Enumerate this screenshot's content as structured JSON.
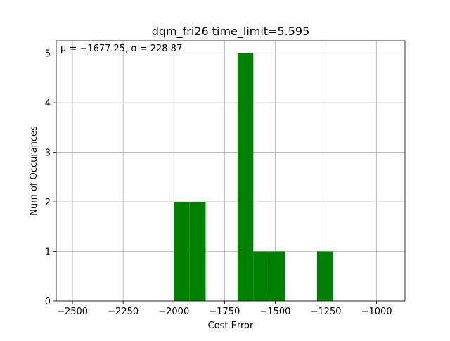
{
  "chart_data": {
    "type": "bar",
    "title": "dqm_fri26 time_limit=5.595",
    "xlabel": "Cost Error",
    "ylabel": "Num of Occurances",
    "annotation": "μ = −1677.25,  σ = 228.87",
    "xlim": [
      -2580,
      -860
    ],
    "ylim": [
      0,
      5.25
    ],
    "xticks": [
      -2500,
      -2250,
      -2000,
      -1750,
      -1500,
      -1250,
      -1000
    ],
    "xtick_labels": [
      "−2500",
      "−2250",
      "−2000",
      "−1750",
      "−1500",
      "−1250",
      "−1000"
    ],
    "yticks": [
      0,
      1,
      2,
      3,
      4,
      5
    ],
    "ytick_labels": [
      "0",
      "1",
      "2",
      "3",
      "4",
      "5"
    ],
    "grid": true,
    "bar_color": "#008000",
    "bins": [
      {
        "x0": -2000,
        "x1": -1922,
        "count": 2
      },
      {
        "x0": -1922,
        "x1": -1843,
        "count": 2
      },
      {
        "x0": -1843,
        "x1": -1765,
        "count": 0
      },
      {
        "x0": -1765,
        "x1": -1686,
        "count": 0
      },
      {
        "x0": -1686,
        "x1": -1608,
        "count": 5
      },
      {
        "x0": -1608,
        "x1": -1530,
        "count": 1
      },
      {
        "x0": -1530,
        "x1": -1451,
        "count": 1
      },
      {
        "x0": -1451,
        "x1": -1373,
        "count": 0
      },
      {
        "x0": -1373,
        "x1": -1294,
        "count": 0
      },
      {
        "x0": -1294,
        "x1": -1216,
        "count": 1
      }
    ]
  }
}
